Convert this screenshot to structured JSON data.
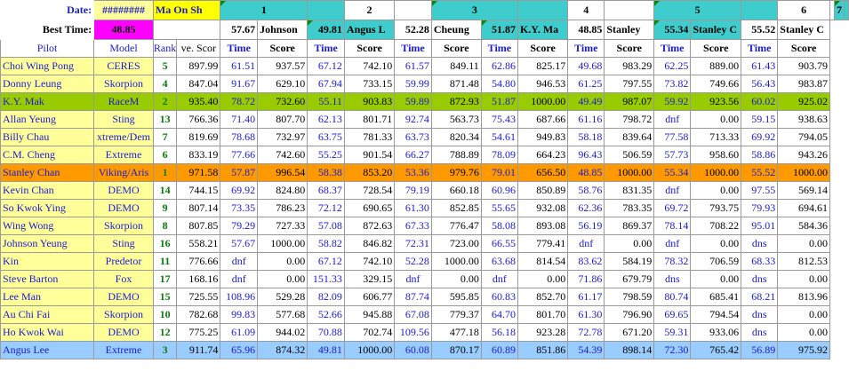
{
  "header": {
    "date_label": "Date:",
    "date_value": "########",
    "venue": "Ma On Sh",
    "best_time_label": "Best Time:",
    "best_time_value": "48.85"
  },
  "rounds": [
    {
      "num": "1",
      "best_time": "57.67",
      "best_pilot": "Johnson"
    },
    {
      "num": "2",
      "best_time": "49.81",
      "best_pilot": "Angus L"
    },
    {
      "num": "3",
      "best_time": "52.28",
      "best_pilot": "Cheung"
    },
    {
      "num": "4",
      "best_time": "51.87",
      "best_pilot": "K.Y. Ma"
    },
    {
      "num": "5",
      "best_time": "48.85",
      "best_pilot": "Stanley"
    },
    {
      "num": "6",
      "best_time": "55.34",
      "best_pilot": "Stanley C"
    },
    {
      "num": "7",
      "best_time": "55.52",
      "best_pilot": "Stanley C"
    }
  ],
  "columns": {
    "pilot": "Pilot",
    "model": "Model",
    "rank": "Rank",
    "ave_score": "ve. Scor",
    "time": "Time",
    "score": "Score"
  },
  "rows": [
    {
      "pilot": "Choi Wing Pong",
      "model": "CERES",
      "rank": "5",
      "ave": "897.99",
      "hl": "",
      "r": [
        [
          "61.51",
          "937.57"
        ],
        [
          "67.12",
          "742.10"
        ],
        [
          "61.57",
          "849.11"
        ],
        [
          "62.86",
          "825.17"
        ],
        [
          "49.68",
          "983.29"
        ],
        [
          "62.25",
          "889.00"
        ],
        [
          "61.43",
          "903.79"
        ]
      ]
    },
    {
      "pilot": "Donny Leung",
      "model": "Skorpion",
      "rank": "4",
      "ave": "847.04",
      "hl": "",
      "r": [
        [
          "91.67",
          "629.10"
        ],
        [
          "67.94",
          "733.15"
        ],
        [
          "59.99",
          "871.48"
        ],
        [
          "54.80",
          "946.53"
        ],
        [
          "61.25",
          "797.55"
        ],
        [
          "73.82",
          "749.66"
        ],
        [
          "56.43",
          "983.87"
        ]
      ]
    },
    {
      "pilot": "K.Y. Mak",
      "model": "RaceM",
      "rank": "2",
      "ave": "935.40",
      "hl": "green",
      "r": [
        [
          "78.72",
          "732.60"
        ],
        [
          "55.11",
          "903.83"
        ],
        [
          "59.89",
          "872.93"
        ],
        [
          "51.87",
          "1000.00"
        ],
        [
          "49.49",
          "987.07"
        ],
        [
          "59.92",
          "923.56"
        ],
        [
          "60.02",
          "925.02"
        ]
      ]
    },
    {
      "pilot": "Allan Yeung",
      "model": "Sting",
      "rank": "13",
      "ave": "766.36",
      "hl": "",
      "r": [
        [
          "71.40",
          "807.70"
        ],
        [
          "62.13",
          "801.71"
        ],
        [
          "92.74",
          "563.73"
        ],
        [
          "75.43",
          "687.66"
        ],
        [
          "61.16",
          "798.72"
        ],
        [
          "dnf",
          "0.00"
        ],
        [
          "59.15",
          "938.63"
        ]
      ]
    },
    {
      "pilot": "Billy Chau",
      "model": "xtreme/Dem",
      "rank": "7",
      "ave": "819.69",
      "hl": "",
      "r": [
        [
          "78.68",
          "732.97"
        ],
        [
          "63.75",
          "781.33"
        ],
        [
          "63.73",
          "820.34"
        ],
        [
          "54.61",
          "949.83"
        ],
        [
          "58.18",
          "839.64"
        ],
        [
          "77.58",
          "713.33"
        ],
        [
          "69.92",
          "794.05"
        ]
      ]
    },
    {
      "pilot": "C.M. Cheng",
      "model": "Extreme",
      "rank": "6",
      "ave": "833.19",
      "hl": "",
      "r": [
        [
          "77.66",
          "742.60"
        ],
        [
          "55.25",
          "901.54"
        ],
        [
          "66.27",
          "788.89"
        ],
        [
          "78.09",
          "664.23"
        ],
        [
          "96.43",
          "506.59"
        ],
        [
          "57.73",
          "958.60"
        ],
        [
          "58.86",
          "943.26"
        ]
      ]
    },
    {
      "pilot": "Stanley Chan",
      "model": "Viking/Aris",
      "rank": "1",
      "ave": "971.58",
      "hl": "orange",
      "r": [
        [
          "57.87",
          "996.54"
        ],
        [
          "58.38",
          "853.20"
        ],
        [
          "53.36",
          "979.76"
        ],
        [
          "79.01",
          "656.50"
        ],
        [
          "48.85",
          "1000.00"
        ],
        [
          "55.34",
          "1000.00"
        ],
        [
          "55.52",
          "1000.00"
        ]
      ]
    },
    {
      "pilot": "Kevin Chan",
      "model": "DEMO",
      "rank": "14",
      "ave": "744.15",
      "hl": "",
      "r": [
        [
          "69.92",
          "824.80"
        ],
        [
          "68.37",
          "728.54"
        ],
        [
          "79.19",
          "660.18"
        ],
        [
          "60.96",
          "850.89"
        ],
        [
          "58.76",
          "831.35"
        ],
        [
          "dnf",
          "0.00"
        ],
        [
          "97.55",
          "569.14"
        ]
      ]
    },
    {
      "pilot": "So Kwok Ying",
      "model": "DEMO",
      "rank": "9",
      "ave": "807.14",
      "hl": "",
      "r": [
        [
          "73.35",
          "786.23"
        ],
        [
          "72.12",
          "690.65"
        ],
        [
          "61.30",
          "852.85"
        ],
        [
          "55.65",
          "932.08"
        ],
        [
          "62.36",
          "783.35"
        ],
        [
          "69.72",
          "793.75"
        ],
        [
          "79.93",
          "694.61"
        ]
      ]
    },
    {
      "pilot": "Wing Wong",
      "model": "Skorpion",
      "rank": "8",
      "ave": "807.85",
      "hl": "",
      "r": [
        [
          "79.29",
          "727.33"
        ],
        [
          "57.08",
          "872.63"
        ],
        [
          "67.33",
          "776.47"
        ],
        [
          "58.08",
          "893.08"
        ],
        [
          "56.19",
          "869.37"
        ],
        [
          "78.14",
          "708.22"
        ],
        [
          "95.01",
          "584.36"
        ]
      ]
    },
    {
      "pilot": "Johnson Yeung",
      "model": "Sting",
      "rank": "16",
      "ave": "558.21",
      "hl": "",
      "r": [
        [
          "57.67",
          "1000.00"
        ],
        [
          "58.82",
          "846.82"
        ],
        [
          "72.31",
          "723.00"
        ],
        [
          "66.55",
          "779.41"
        ],
        [
          "dnf",
          "0.00"
        ],
        [
          "dnf",
          "0.00"
        ],
        [
          "dns",
          "0.00"
        ]
      ]
    },
    {
      "pilot": "Kin",
      "model": "Predetor",
      "rank": "11",
      "ave": "776.66",
      "hl": "",
      "r": [
        [
          "dnf",
          "0.00"
        ],
        [
          "67.12",
          "742.10"
        ],
        [
          "52.28",
          "1000.00"
        ],
        [
          "63.68",
          "814.54"
        ],
        [
          "83.62",
          "584.19"
        ],
        [
          "78.32",
          "706.59"
        ],
        [
          "68.33",
          "812.53"
        ]
      ]
    },
    {
      "pilot": "Steve Barton",
      "model": "Fox",
      "rank": "17",
      "ave": "168.16",
      "hl": "",
      "r": [
        [
          "dnf",
          "0.00"
        ],
        [
          "151.33",
          "329.15"
        ],
        [
          "dnf",
          "0.00"
        ],
        [
          "dnf",
          "0.00"
        ],
        [
          "71.86",
          "679.79"
        ],
        [
          "dns",
          "0.00"
        ],
        [
          "dns",
          "0.00"
        ]
      ]
    },
    {
      "pilot": "Lee Man",
      "model": "DEMO",
      "rank": "15",
      "ave": "725.55",
      "hl": "",
      "r": [
        [
          "108.96",
          "529.28"
        ],
        [
          "82.09",
          "606.77"
        ],
        [
          "87.74",
          "595.85"
        ],
        [
          "60.83",
          "852.70"
        ],
        [
          "61.17",
          "798.59"
        ],
        [
          "80.74",
          "685.41"
        ],
        [
          "68.21",
          "813.96"
        ]
      ]
    },
    {
      "pilot": "Au Chi Fai",
      "model": "Skorpion",
      "rank": "10",
      "ave": "782.68",
      "hl": "",
      "r": [
        [
          "99.83",
          "577.68"
        ],
        [
          "52.66",
          "945.88"
        ],
        [
          "67.08",
          "779.37"
        ],
        [
          "64.70",
          "801.70"
        ],
        [
          "61.30",
          "796.90"
        ],
        [
          "69.65",
          "794.54"
        ],
        [
          "dns",
          "0.00"
        ]
      ]
    },
    {
      "pilot": "Ho Kwok Wai",
      "model": "DEMO",
      "rank": "12",
      "ave": "775.25",
      "hl": "",
      "r": [
        [
          "61.09",
          "944.02"
        ],
        [
          "70.88",
          "702.74"
        ],
        [
          "109.56",
          "477.18"
        ],
        [
          "56.18",
          "923.28"
        ],
        [
          "72.78",
          "671.20"
        ],
        [
          "59.31",
          "933.06"
        ],
        [
          "dns",
          "0.00"
        ]
      ]
    },
    {
      "pilot": "Angus Lee",
      "model": "Extreme",
      "rank": "3",
      "ave": "911.74",
      "hl": "blue",
      "r": [
        [
          "65.96",
          "874.32"
        ],
        [
          "49.81",
          "1000.00"
        ],
        [
          "60.08",
          "870.17"
        ],
        [
          "60.89",
          "851.86"
        ],
        [
          "54.39",
          "898.14"
        ],
        [
          "72.30",
          "765.42"
        ],
        [
          "56.89",
          "975.92"
        ]
      ]
    }
  ]
}
